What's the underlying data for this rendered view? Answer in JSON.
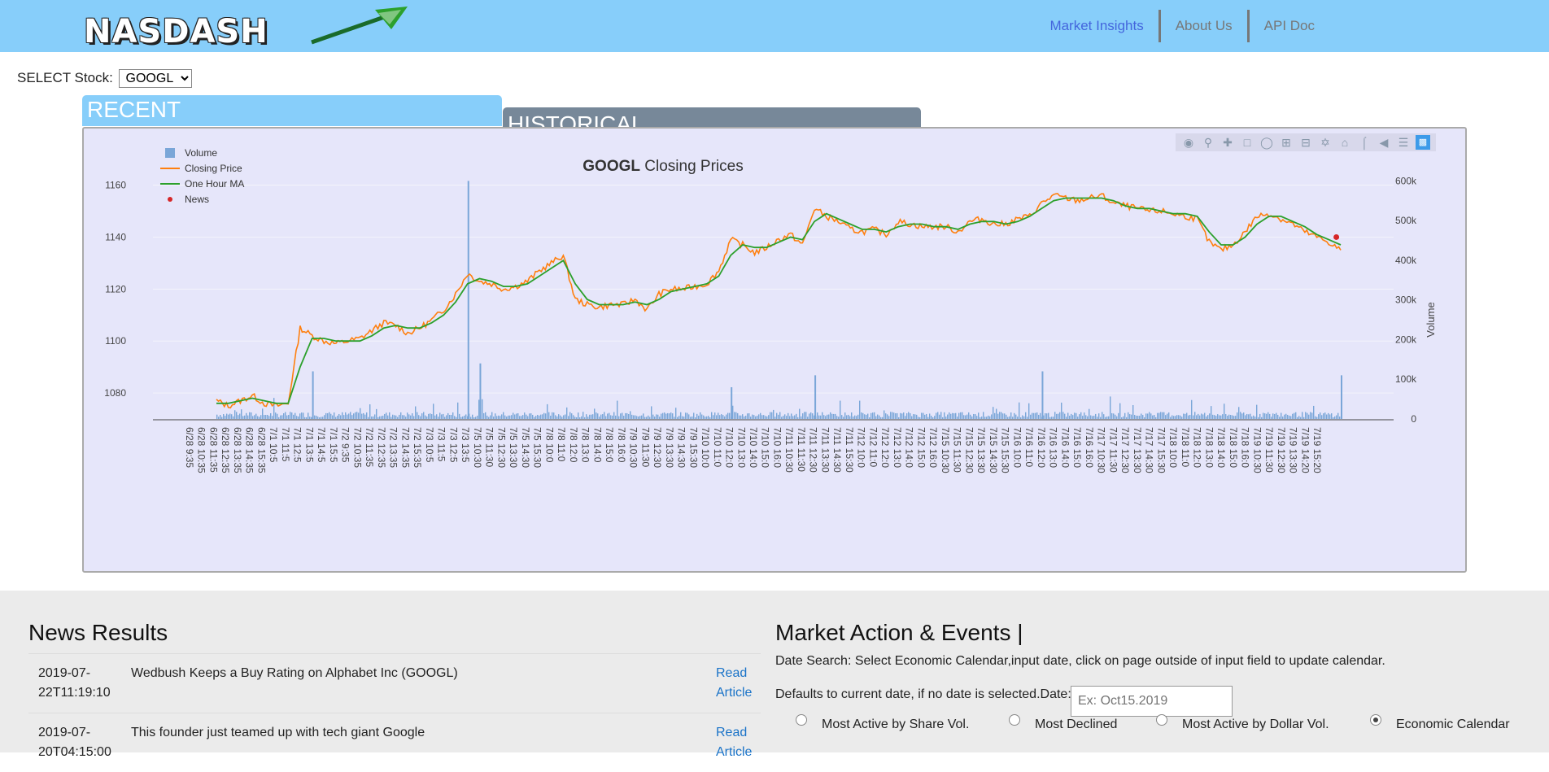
{
  "navbar": {
    "logo_text": "NASDASH",
    "links": [
      {
        "label": "Market Insights"
      },
      {
        "label": "About Us"
      },
      {
        "label": "API Doc"
      }
    ]
  },
  "stock_select": {
    "label": "SELECT Stock:",
    "value": "GOOGL"
  },
  "tabs": {
    "recent": "RECENT",
    "historical": "HISTORICAL"
  },
  "chart_data": {
    "type": "line",
    "title": {
      "ticker": "GOOGL",
      "rest": " Closing Prices"
    },
    "legend_position": "top-left",
    "series": [
      {
        "name": "Volume",
        "type": "bar",
        "color": "#7aa6d8",
        "axis": "right"
      },
      {
        "name": "Closing Price",
        "type": "line",
        "color": "#ff7f0e",
        "axis": "left"
      },
      {
        "name": "One Hour MA",
        "type": "line",
        "color": "#2ca02c",
        "axis": "left"
      },
      {
        "name": "News",
        "type": "scatter",
        "color": "#d62728",
        "axis": "left"
      }
    ],
    "y_left": {
      "ticks": [
        1080,
        1100,
        1120,
        1140,
        1160
      ],
      "range": [
        1070,
        1163
      ]
    },
    "y_right": {
      "label": "Volume",
      "ticks": [
        "0",
        "100k",
        "200k",
        "300k",
        "400k",
        "500k",
        "600k"
      ],
      "range": [
        0,
        650000
      ]
    },
    "x_ticks": [
      "6/28 9:35",
      "6/28 10:35",
      "6/28 11:35",
      "6/28 12:35",
      "6/28 13:35",
      "6/28 14:35",
      "6/28 15:35",
      "7/1 10:5",
      "7/1 11:5",
      "7/1 12:5",
      "7/1 13:5",
      "7/1 14:5",
      "7/1 15:5",
      "7/2 9:35",
      "7/2 10:35",
      "7/2 11:35",
      "7/2 12:35",
      "7/2 13:35",
      "7/2 14:35",
      "7/2 15:35",
      "7/3 10:5",
      "7/3 11:5",
      "7/3 12:5",
      "7/3 13:5",
      "7/5 10:30",
      "7/5 11:30",
      "7/5 12:30",
      "7/5 13:30",
      "7/5 14:30",
      "7/5 15:30",
      "7/8 10:0",
      "7/8 11:0",
      "7/8 12:0",
      "7/8 13:0",
      "7/8 14:0",
      "7/8 15:0",
      "7/8 16:0",
      "7/9 10:30",
      "7/9 11:30",
      "7/9 12:30",
      "7/9 13:30",
      "7/9 14:30",
      "7/9 15:30",
      "7/10 10:0",
      "7/10 11:0",
      "7/10 12:0",
      "7/10 13:0",
      "7/10 14:0",
      "7/10 15:0",
      "7/10 16:0",
      "7/11 10:30",
      "7/11 11:30",
      "7/11 12:30",
      "7/11 13:30",
      "7/11 14:30",
      "7/11 15:30",
      "7/12 10:0",
      "7/12 11:0",
      "7/12 12:0",
      "7/12 13:0",
      "7/12 14:0",
      "7/12 15:0",
      "7/12 16:0",
      "7/15 10:30",
      "7/15 11:30",
      "7/15 12:30",
      "7/15 13:30",
      "7/15 14:30",
      "7/15 15:30",
      "7/16 10:0",
      "7/16 11:0",
      "7/16 12:0",
      "7/16 13:0",
      "7/16 14:0",
      "7/16 15:0",
      "7/16 16:0",
      "7/17 10:30",
      "7/17 11:30",
      "7/17 12:30",
      "7/17 13:30",
      "7/17 14:30",
      "7/17 15:30",
      "7/18 10:0",
      "7/18 11:0",
      "7/18 12:0",
      "7/18 13:0",
      "7/18 14:0",
      "7/18 15:0",
      "7/18 16:0",
      "7/19 10:30",
      "7/19 11:30",
      "7/19 12:30",
      "7/19 13:30",
      "7/19 14:20",
      "7/19 15:20"
    ],
    "close_points": [
      1077,
      1075,
      1077,
      1079,
      1076,
      1075,
      1076,
      1105,
      1102,
      1100,
      1099,
      1100,
      1101,
      1104,
      1107,
      1106,
      1103,
      1105,
      1108,
      1112,
      1118,
      1126,
      1123,
      1122,
      1120,
      1121,
      1123,
      1127,
      1130,
      1133,
      1116,
      1114,
      1113,
      1114,
      1114,
      1116,
      1112,
      1118,
      1120,
      1120,
      1121,
      1122,
      1127,
      1139,
      1137,
      1134,
      1136,
      1139,
      1141,
      1137,
      1151,
      1148,
      1146,
      1143,
      1142,
      1143,
      1141,
      1146,
      1145,
      1144,
      1144,
      1144,
      1142,
      1146,
      1147,
      1145,
      1145,
      1147,
      1148,
      1153,
      1156,
      1155,
      1154,
      1155,
      1156,
      1153,
      1152,
      1151,
      1150,
      1150,
      1149,
      1148,
      1147,
      1138,
      1135,
      1137,
      1142,
      1148,
      1149,
      1147,
      1145,
      1142,
      1140,
      1138,
      1135
    ],
    "ma_points": [
      1076,
      1076,
      1077,
      1078,
      1077,
      1076,
      1076,
      1090,
      1101,
      1101,
      1100,
      1100,
      1100,
      1102,
      1105,
      1106,
      1105,
      1105,
      1107,
      1110,
      1115,
      1122,
      1124,
      1123,
      1121,
      1121,
      1122,
      1125,
      1128,
      1131,
      1122,
      1116,
      1114,
      1114,
      1114,
      1115,
      1114,
      1116,
      1119,
      1120,
      1121,
      1122,
      1125,
      1133,
      1137,
      1136,
      1136,
      1138,
      1140,
      1139,
      1146,
      1149,
      1147,
      1145,
      1143,
      1143,
      1142,
      1144,
      1145,
      1145,
      1144,
      1144,
      1143,
      1145,
      1146,
      1146,
      1145,
      1146,
      1148,
      1151,
      1154,
      1155,
      1155,
      1155,
      1155,
      1154,
      1152,
      1151,
      1151,
      1150,
      1149,
      1149,
      1148,
      1142,
      1137,
      1137,
      1140,
      1145,
      1148,
      1148,
      1146,
      1144,
      1141,
      1139,
      1137
    ],
    "volume_spikes": [
      {
        "x": "7/3 11:5",
        "value": 600000
      },
      {
        "x": "7/1 11:5",
        "value": 120000
      },
      {
        "x": "7/3 12:5",
        "value": 140000
      },
      {
        "x": "7/10 10:0",
        "value": 80000
      },
      {
        "x": "7/11 10:30",
        "value": 110000
      },
      {
        "x": "7/16 10:0",
        "value": 120000
      },
      {
        "x": "7/19 15:20",
        "value": 110000
      }
    ],
    "news_points": [
      {
        "x": "7/19 13:30",
        "value": 1140
      }
    ]
  },
  "news": {
    "title": "News Results",
    "items": [
      {
        "date": "2019-07-22T11:19:10",
        "headline": "Wedbush Keeps a Buy Rating on Alphabet Inc (GOOGL)",
        "link": "Read Article"
      },
      {
        "date": "2019-07-20T04:15:00",
        "headline": "This founder just teamed up with tech giant Google",
        "link": "Read Article"
      }
    ]
  },
  "market": {
    "title": "Market Action & Events |",
    "description": "Date Search: Select Economic Calendar,input date, click on page outside of input field to update calendar.",
    "default_text": "Defaults to current date, if no date is selected.Date:",
    "date_placeholder": "Ex: Oct15.2019",
    "radios": [
      {
        "label": "Most Active by Share Vol.",
        "checked": false
      },
      {
        "label": "Most Declined",
        "checked": false
      },
      {
        "label": "Most Active by Dollar Vol.",
        "checked": false
      },
      {
        "label": "Economic Calendar",
        "checked": true
      }
    ]
  }
}
